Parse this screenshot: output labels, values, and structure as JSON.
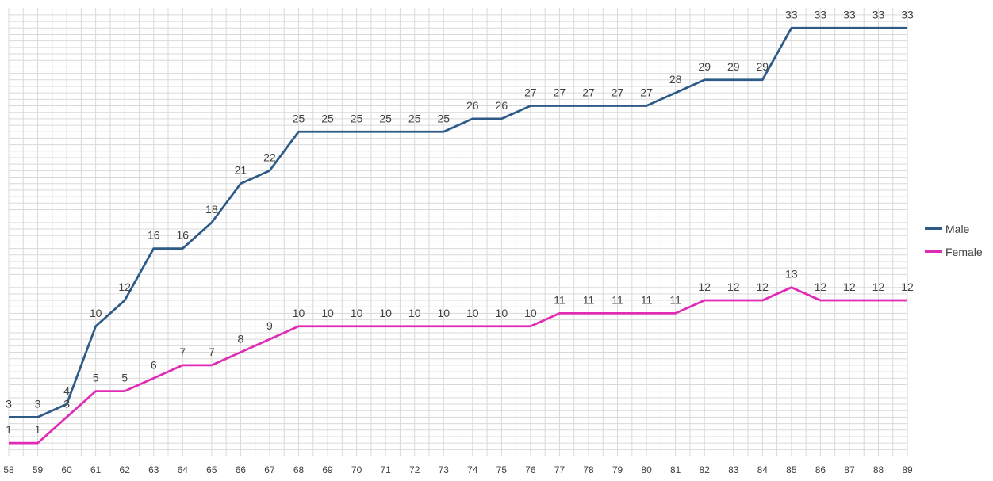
{
  "chart_data": {
    "type": "line",
    "title": "",
    "xlabel": "",
    "ylabel": "",
    "categories": [
      "58",
      "59",
      "60",
      "61",
      "62",
      "63",
      "64",
      "65",
      "66",
      "67",
      "68",
      "69",
      "70",
      "71",
      "72",
      "73",
      "74",
      "75",
      "76",
      "77",
      "78",
      "79",
      "80",
      "81",
      "82",
      "83",
      "84",
      "85",
      "86",
      "87",
      "88",
      "89"
    ],
    "ylim": [
      0,
      34
    ],
    "grid": true,
    "legend_position": "right",
    "series": [
      {
        "name": "Male",
        "color": "#2e5a88",
        "values": [
          3,
          3,
          4,
          10,
          12,
          16,
          16,
          18,
          21,
          22,
          25,
          25,
          25,
          25,
          25,
          25,
          26,
          26,
          27,
          27,
          27,
          27,
          27,
          28,
          29,
          29,
          29,
          33,
          33,
          33,
          33,
          33
        ]
      },
      {
        "name": "Female",
        "color": "#e12bb4",
        "values": [
          1,
          1,
          3,
          5,
          5,
          6,
          7,
          7,
          8,
          9,
          10,
          10,
          10,
          10,
          10,
          10,
          10,
          10,
          10,
          11,
          11,
          11,
          11,
          11,
          12,
          12,
          12,
          13,
          12,
          12,
          12,
          12
        ]
      }
    ]
  }
}
